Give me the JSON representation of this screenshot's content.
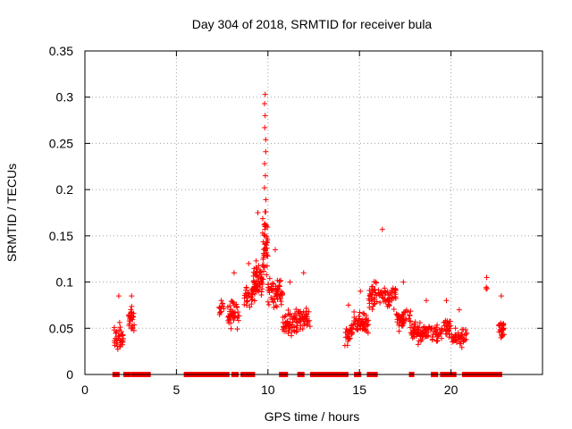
{
  "chart_data": {
    "type": "scatter",
    "title": "Day 304 of 2018, SRMTID for receiver bula",
    "xlabel": "GPS time / hours",
    "ylabel": "SRMTID / TECUs",
    "xlim": [
      0,
      25
    ],
    "ylim": [
      0,
      0.35
    ],
    "xticks": [
      0,
      5,
      10,
      15,
      20
    ],
    "xtick_labels": [
      "0",
      "5",
      "10",
      "15",
      "20"
    ],
    "yticks": [
      0,
      0.05,
      0.1,
      0.15,
      0.2,
      0.25,
      0.3,
      0.35
    ],
    "ytick_labels": [
      "0",
      "0.05",
      "0.1",
      "0.15",
      "0.2",
      "0.25",
      "0.3",
      "0.35"
    ],
    "grid": true,
    "marker": "+",
    "color": "#ff0000",
    "clusters": [
      {
        "x_start": 1.6,
        "x_end": 2.1,
        "y_base": 0.04,
        "y_spread": 0.02,
        "y_max": 0.085,
        "n": 40
      },
      {
        "x_start": 2.4,
        "x_end": 2.7,
        "y_base": 0.06,
        "y_spread": 0.02,
        "y_max": 0.085,
        "n": 30
      },
      {
        "x_start": 7.3,
        "x_end": 7.6,
        "y_base": 0.07,
        "y_spread": 0.01,
        "y_max": 0.08,
        "n": 12
      },
      {
        "x_start": 7.8,
        "x_end": 8.5,
        "y_base": 0.065,
        "y_spread": 0.02,
        "y_max": 0.11,
        "n": 45
      },
      {
        "x_start": 8.7,
        "x_end": 9.2,
        "y_base": 0.085,
        "y_spread": 0.015,
        "y_max": 0.12,
        "n": 30
      },
      {
        "x_start": 9.2,
        "x_end": 9.7,
        "y_base": 0.1,
        "y_spread": 0.03,
        "y_max": 0.175,
        "n": 60
      },
      {
        "x_start": 9.7,
        "x_end": 10.0,
        "y_base": 0.14,
        "y_spread": 0.05,
        "y_max": 0.303,
        "n": 45
      },
      {
        "x_start": 10.0,
        "x_end": 10.8,
        "y_base": 0.09,
        "y_spread": 0.02,
        "y_max": 0.135,
        "n": 60
      },
      {
        "x_start": 10.8,
        "x_end": 11.6,
        "y_base": 0.055,
        "y_spread": 0.02,
        "y_max": 0.1,
        "n": 55
      },
      {
        "x_start": 11.6,
        "x_end": 12.3,
        "y_base": 0.06,
        "y_spread": 0.02,
        "y_max": 0.11,
        "n": 45
      },
      {
        "x_start": 14.2,
        "x_end": 14.6,
        "y_base": 0.045,
        "y_spread": 0.015,
        "y_max": 0.075,
        "n": 30
      },
      {
        "x_start": 14.6,
        "x_end": 15.5,
        "y_base": 0.055,
        "y_spread": 0.015,
        "y_max": 0.09,
        "n": 55
      },
      {
        "x_start": 15.5,
        "x_end": 17.0,
        "y_base": 0.085,
        "y_spread": 0.02,
        "y_max": 0.157,
        "n": 90
      },
      {
        "x_start": 17.0,
        "x_end": 17.8,
        "y_base": 0.06,
        "y_spread": 0.015,
        "y_max": 0.1,
        "n": 45
      },
      {
        "x_start": 17.8,
        "x_end": 19.5,
        "y_base": 0.045,
        "y_spread": 0.015,
        "y_max": 0.08,
        "n": 100
      },
      {
        "x_start": 19.5,
        "x_end": 20.0,
        "y_base": 0.05,
        "y_spread": 0.015,
        "y_max": 0.08,
        "n": 25
      },
      {
        "x_start": 20.0,
        "x_end": 20.9,
        "y_base": 0.04,
        "y_spread": 0.015,
        "y_max": 0.07,
        "n": 45
      },
      {
        "x_start": 21.9,
        "x_end": 22.0,
        "y_base": 0.09,
        "y_spread": 0.01,
        "y_max": 0.105,
        "n": 3
      },
      {
        "x_start": 22.6,
        "x_end": 22.9,
        "y_base": 0.05,
        "y_spread": 0.015,
        "y_max": 0.085,
        "n": 30
      }
    ],
    "zero_segments": [
      [
        1.6,
        1.8
      ],
      [
        2.2,
        2.4
      ],
      [
        2.6,
        3.5
      ],
      [
        5.5,
        7.8
      ],
      [
        8.1,
        8.3
      ],
      [
        8.6,
        9.2
      ],
      [
        10.7,
        11.0
      ],
      [
        11.7,
        11.9
      ],
      [
        12.4,
        14.3
      ],
      [
        14.8,
        15.0
      ],
      [
        15.5,
        15.6
      ],
      [
        15.8,
        15.9
      ],
      [
        17.8,
        17.9
      ],
      [
        19.0,
        19.2
      ],
      [
        19.5,
        19.7
      ],
      [
        19.8,
        20.2
      ],
      [
        20.7,
        22.7
      ]
    ]
  }
}
